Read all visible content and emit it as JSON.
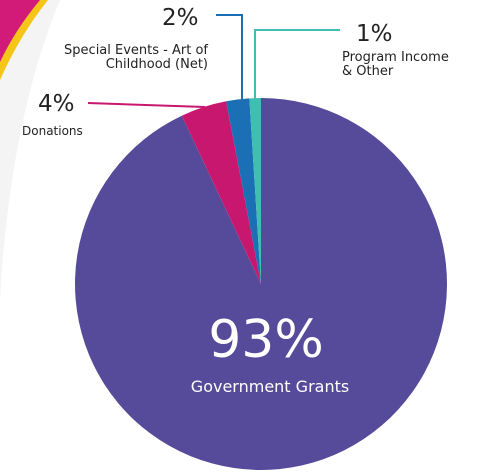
{
  "chart_data": {
    "type": "pie",
    "categories": [
      "Government Grants",
      "Donations",
      "Special Events - Art of Childhood (Net)",
      "Program Income & Other"
    ],
    "values": [
      93,
      4,
      2,
      1
    ],
    "value_labels": [
      "93%",
      "4%",
      "2%",
      "1%"
    ],
    "colors": [
      "#564a9a",
      "#c8176e",
      "#1a6fb5",
      "#3fbfb0"
    ]
  }
}
